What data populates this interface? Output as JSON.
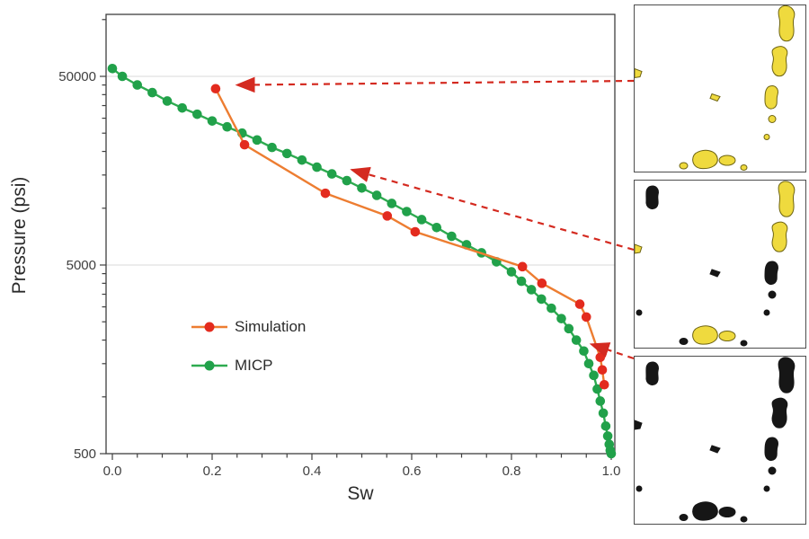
{
  "chart_data": {
    "type": "line",
    "title": "",
    "xlabel": "Sw",
    "ylabel": "Pressure (psi)",
    "x_axis": {
      "min": 0.0,
      "max": 1.0,
      "minor_step": 0.05,
      "major_ticks": [
        {
          "v": 0.0,
          "label": "0.0"
        },
        {
          "v": 0.2,
          "label": "0.2"
        },
        {
          "v": 0.4,
          "label": "0.4"
        },
        {
          "v": 0.6,
          "label": "0.6"
        },
        {
          "v": 0.8,
          "label": "0.8"
        },
        {
          "v": 1.0,
          "label": "1.0"
        }
      ]
    },
    "y_axis": {
      "scale": "log",
      "min": 500,
      "max": 100000,
      "major_ticks": [
        {
          "v": 50000,
          "label": "50000"
        },
        {
          "v": 5000,
          "label": "5000"
        },
        {
          "v": 500,
          "label": "500"
        }
      ]
    },
    "grid": {
      "horizontal_major": true,
      "vertical": false
    },
    "legend": {
      "position": "inside-lower-left",
      "entries": [
        "Simulation",
        "MICP"
      ]
    },
    "series": [
      {
        "name": "Simulation",
        "line_color": "#ed7d31",
        "marker_color": "#e32b1e",
        "marker": "circle",
        "x": [
          0.207,
          0.265,
          0.427,
          0.551,
          0.607,
          0.822,
          0.861,
          0.937,
          0.95,
          0.978,
          0.982,
          0.986
        ],
        "y": [
          43000,
          21700,
          12000,
          9100,
          7500,
          4900,
          4000,
          3100,
          2650,
          1620,
          1390,
          1160
        ]
      },
      {
        "name": "MICP",
        "line_color": "#2eab50",
        "marker_color": "#21a14a",
        "marker": "circle",
        "x": [
          0.0,
          0.02,
          0.05,
          0.08,
          0.11,
          0.14,
          0.17,
          0.2,
          0.23,
          0.26,
          0.29,
          0.32,
          0.35,
          0.38,
          0.41,
          0.44,
          0.47,
          0.5,
          0.53,
          0.56,
          0.59,
          0.62,
          0.65,
          0.68,
          0.71,
          0.74,
          0.77,
          0.8,
          0.82,
          0.84,
          0.86,
          0.88,
          0.9,
          0.915,
          0.93,
          0.945,
          0.955,
          0.965,
          0.972,
          0.978,
          0.984,
          0.989,
          0.993,
          0.996,
          0.998,
          1.0
        ],
        "y": [
          55000,
          50000,
          45000,
          41000,
          37000,
          34000,
          31500,
          29000,
          27000,
          25000,
          23000,
          21000,
          19500,
          18000,
          16500,
          15200,
          14000,
          12800,
          11700,
          10600,
          9600,
          8700,
          7900,
          7100,
          6400,
          5800,
          5200,
          4600,
          4100,
          3700,
          3300,
          2950,
          2600,
          2300,
          2000,
          1750,
          1500,
          1300,
          1100,
          950,
          820,
          700,
          620,
          560,
          520,
          500
        ]
      }
    ],
    "arrow_color": "#d42a20",
    "annotations": [
      {
        "type": "arrow",
        "from_inset": 0,
        "sw": 0.25,
        "p": 45000
      },
      {
        "type": "arrow",
        "from_inset": 1,
        "sw": 0.48,
        "p": 16000
      },
      {
        "type": "arrow",
        "from_inset": 2,
        "sw": 0.96,
        "p": 1900
      }
    ]
  },
  "insets": {
    "colors": {
      "yellow": "#efda3e",
      "yellow_stroke": "#6e6412",
      "black": "#161616"
    },
    "states": [
      {
        "a": "yellow",
        "b": "yellow",
        "c": "none"
      },
      {
        "a": "yellow",
        "b": "black",
        "c": "black"
      },
      {
        "a": "black",
        "b": "black",
        "c": "black"
      }
    ]
  }
}
